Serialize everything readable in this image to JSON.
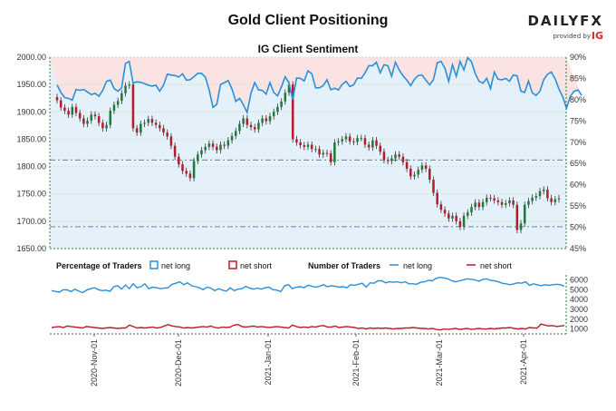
{
  "header": {
    "title": "Gold Client Positioning",
    "subtitle": "IG Client Sentiment",
    "logo_main": "DAILYFX",
    "logo_sub": "provided by",
    "logo_ig": "IG"
  },
  "colors": {
    "net_long": "#2b8fd8",
    "net_short": "#c0192d",
    "candle_up": "#1f7a3a",
    "candle_down": "#b51c2a",
    "bg_long": "#e4f1fb",
    "bg_short": "#fbe3e3",
    "grid": "#cfe3b5",
    "axis": "#2e7d32"
  },
  "chart_data": [
    {
      "type": "candlestick",
      "title": "IG Client Sentiment",
      "y_left_ticks": [
        "2000.00",
        "1950.00",
        "1900.00",
        "1850.00",
        "1800.00",
        "1750.00",
        "1700.00",
        "1650.00"
      ],
      "ylim_left": [
        1650,
        2000
      ],
      "y_right_ticks": [
        "90%",
        "85%",
        "80%",
        "75%",
        "70%",
        "65%",
        "60%",
        "55%",
        "50%",
        "45%"
      ],
      "ylim_right": [
        45,
        90
      ],
      "reference_lines": [
        1812,
        1690
      ],
      "ohlc_close": [
        1921,
        1908,
        1902,
        1895,
        1909,
        1898,
        1888,
        1878,
        1884,
        1895,
        1892,
        1880,
        1870,
        1876,
        1902,
        1913,
        1920,
        1934,
        1948,
        1950,
        1870,
        1862,
        1878,
        1880,
        1887,
        1880,
        1876,
        1870,
        1862,
        1855,
        1838,
        1818,
        1804,
        1792,
        1787,
        1779,
        1810,
        1822,
        1830,
        1836,
        1842,
        1836,
        1830,
        1840,
        1838,
        1848,
        1856,
        1865,
        1878,
        1888,
        1876,
        1872,
        1868,
        1880,
        1888,
        1883,
        1892,
        1900,
        1909,
        1919,
        1935,
        1950,
        1850,
        1844,
        1839,
        1836,
        1840,
        1832,
        1832,
        1822,
        1825,
        1824,
        1808,
        1844,
        1846,
        1850,
        1855,
        1846,
        1845,
        1852,
        1852,
        1840,
        1835,
        1848,
        1838,
        1827,
        1812,
        1810,
        1815,
        1822,
        1818,
        1808,
        1796,
        1782,
        1785,
        1794,
        1802,
        1796,
        1776,
        1752,
        1731,
        1721,
        1714,
        1705,
        1710,
        1700,
        1690,
        1710,
        1716,
        1726,
        1734,
        1726,
        1735,
        1743,
        1742,
        1738,
        1735,
        1730,
        1733,
        1738,
        1730,
        1684,
        1696,
        1730,
        1737,
        1743,
        1746,
        1755,
        1758,
        1742,
        1735,
        1740,
        1742
      ],
      "sentiment_net_long_pct": [
        83.5,
        81.7,
        80.5,
        80.3,
        79.9,
        82.4,
        82.2,
        82.4,
        81.8,
        81.2,
        81.5,
        80.8,
        82.2,
        84.3,
        84.6,
        82.6,
        82.0,
        82.8,
        88.5,
        89.0,
        83.9,
        84.2,
        84.1,
        83.8,
        83.4,
        83.2,
        83.4,
        82.0,
        83.4,
        86.0,
        85.8,
        85.7,
        85.3,
        86.1,
        84.6,
        84.7,
        85.4,
        86.2,
        86.2,
        85.3,
        82.3,
        78.2,
        78.9,
        83.6,
        84.0,
        84.5,
        82.5,
        79.6,
        80.3,
        78.8,
        77.0,
        81.5,
        84.0,
        82.3,
        82.2,
        81.3,
        84.0,
        81.7,
        80.9,
        83.0,
        85.4,
        83.9,
        80.0,
        85.1,
        85.0,
        84.4,
        86.8,
        86.1,
        82.8,
        82.8,
        83.3,
        84.7,
        82.3,
        82.7,
        82.3,
        83.6,
        84.3,
        83.1,
        83.5,
        85.1,
        85.0,
        86.3,
        88.0,
        88.0,
        88.8,
        86.3,
        88.2,
        88.0,
        85.5,
        88.8,
        87.0,
        85.6,
        84.6,
        83.3,
        84.8,
        85.7,
        85.8,
        84.6,
        83.5,
        84.7,
        88.7,
        89.0,
        87.4,
        84.3,
        88.2,
        85.5,
        89.0,
        87.0,
        89.9,
        88.9,
        86.1,
        84.3,
        83.9,
        85.0,
        82.6,
        86.5,
        84.8,
        84.7,
        85.0,
        84.3,
        85.8,
        85.6,
        82.0,
        81.7,
        84.4,
        81.6,
        81.0,
        82.0,
        84.7,
        86.0,
        86.5,
        84.9,
        82.5,
        80.7,
        78.0,
        80.8,
        82.0,
        82.3,
        81.0
      ]
    },
    {
      "type": "line",
      "legend": {
        "percentage_title": "Percentage of Traders",
        "pct_long": "net long",
        "pct_short": "net short",
        "number_title": "Number of Traders",
        "num_long": "net long",
        "num_short": "net short"
      },
      "y_ticks": [
        "6000",
        "5000",
        "4000",
        "3000",
        "2000",
        "1000"
      ],
      "ylim": [
        500,
        6500
      ],
      "series": [
        {
          "name": "net long",
          "values": [
            4900,
            4820,
            4750,
            5000,
            4980,
            4800,
            5050,
            4850,
            4700,
            4950,
            5100,
            5200,
            5000,
            4900,
            4950,
            4820,
            5300,
            5400,
            5050,
            5480,
            5100,
            5600,
            5200,
            5300,
            5600,
            5100,
            5250,
            5200,
            5100,
            5150,
            5200,
            5550,
            5650,
            5800,
            5500,
            5700,
            5400,
            5300,
            5200,
            5000,
            5250,
            5150,
            4900,
            5100,
            4950,
            4850,
            5200,
            4900,
            5050,
            5100,
            5350,
            5150,
            5050,
            5150,
            5050,
            5200,
            5250,
            5000,
            4950,
            4800,
            5400,
            5500,
            5100,
            5250,
            5300,
            5200,
            5450,
            5350,
            5250,
            5350,
            5500,
            5300,
            5400,
            5350,
            5250,
            5300,
            5200,
            5500,
            5450,
            5550,
            5650,
            5250,
            5700,
            5650,
            5900,
            5900,
            5700,
            5800,
            5750,
            5800,
            5700,
            5800,
            5600,
            5600,
            5550,
            5750,
            5800,
            5950,
            5900,
            6150,
            6250,
            6200,
            6100,
            5900,
            5800,
            5900,
            6000,
            6100,
            6050,
            6000,
            5850,
            6050,
            6100,
            5950,
            5900,
            5800,
            5650,
            5600,
            5500,
            5600,
            5700,
            5650,
            5800,
            5450,
            5600,
            5500,
            5400,
            5500,
            5450,
            5500,
            5550,
            5500,
            5350
          ]
        },
        {
          "name": "net short",
          "values": [
            1150,
            1200,
            1250,
            1150,
            1300,
            1250,
            1200,
            1150,
            1100,
            1250,
            1200,
            1150,
            1100,
            1050,
            1100,
            1150,
            1100,
            1050,
            1100,
            1100,
            1400,
            1250,
            1100,
            1150,
            1100,
            1150,
            1200,
            1100,
            1150,
            1300,
            1450,
            1300,
            1250,
            1200,
            1100,
            1150,
            1100,
            1150,
            1200,
            1250,
            1200,
            1300,
            1150,
            1100,
            1200,
            1150,
            1200,
            1400,
            1450,
            1250,
            1200,
            1250,
            1300,
            1200,
            1250,
            1200,
            1150,
            1200,
            1250,
            1200,
            1150,
            1100,
            1400,
            1250,
            1150,
            1200,
            1150,
            1250,
            1200,
            1300,
            1350,
            1200,
            1200,
            1300,
            1150,
            1200,
            1250,
            1200,
            1150,
            1050,
            1100,
            1000,
            1100,
            1050,
            1100,
            1050,
            1100,
            1050,
            1000,
            1050,
            1050,
            1100,
            1100,
            1150,
            1100,
            1050,
            1050,
            1000,
            1050,
            950,
            900,
            1000,
            950,
            1000,
            1050,
            950,
            1000,
            1050,
            950,
            1000,
            1050,
            1000,
            1000,
            1050,
            1000,
            1050,
            1100,
            1100,
            1150,
            1050,
            1000,
            1050,
            1000,
            1150,
            1100,
            1100,
            1500,
            1400,
            1300,
            1350,
            1250,
            1300,
            1350
          ]
        }
      ],
      "x_ticks": [
        "2020-Nov-01",
        "2020-Dec-01",
        "2021-Jan-01",
        "2021-Feb-01",
        "2021-Mar-01",
        "2021-Apr-01"
      ]
    }
  ]
}
